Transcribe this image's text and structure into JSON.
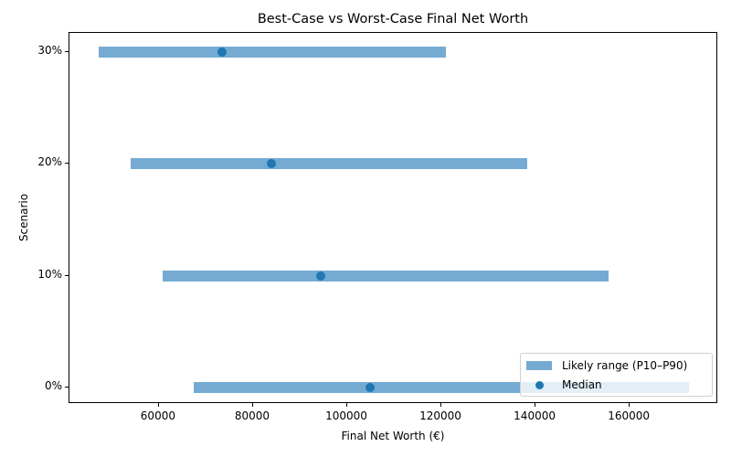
{
  "chart_data": {
    "type": "range_dot",
    "title": "Best-Case vs Worst-Case Final Net Worth",
    "xlabel": "Final Net Worth (€)",
    "ylabel": "Scenario",
    "categories": [
      "0%",
      "10%",
      "20%",
      "30%"
    ],
    "series": [
      {
        "name": "Likely range (P10–P90)",
        "type": "range_bar",
        "low": [
          67400,
          60800,
          54000,
          47200
        ],
        "high": [
          172600,
          155500,
          138300,
          121000
        ],
        "color": "#75abd2"
      },
      {
        "name": "Median",
        "type": "scatter",
        "values": [
          104900,
          94400,
          83900,
          73400
        ],
        "color": "#1f77b4"
      }
    ],
    "xlim": [
      41000,
      178800
    ],
    "xticks": [
      60000,
      80000,
      100000,
      120000,
      140000,
      160000
    ],
    "xtick_labels": [
      "60000",
      "80000",
      "100000",
      "120000",
      "140000",
      "160000"
    ],
    "yticks": [
      "0%",
      "10%",
      "20%",
      "30%"
    ],
    "grid": false,
    "legend_position": "lower right"
  },
  "legend": {
    "range_label": "Likely range (P10–P90)",
    "median_label": "Median"
  }
}
